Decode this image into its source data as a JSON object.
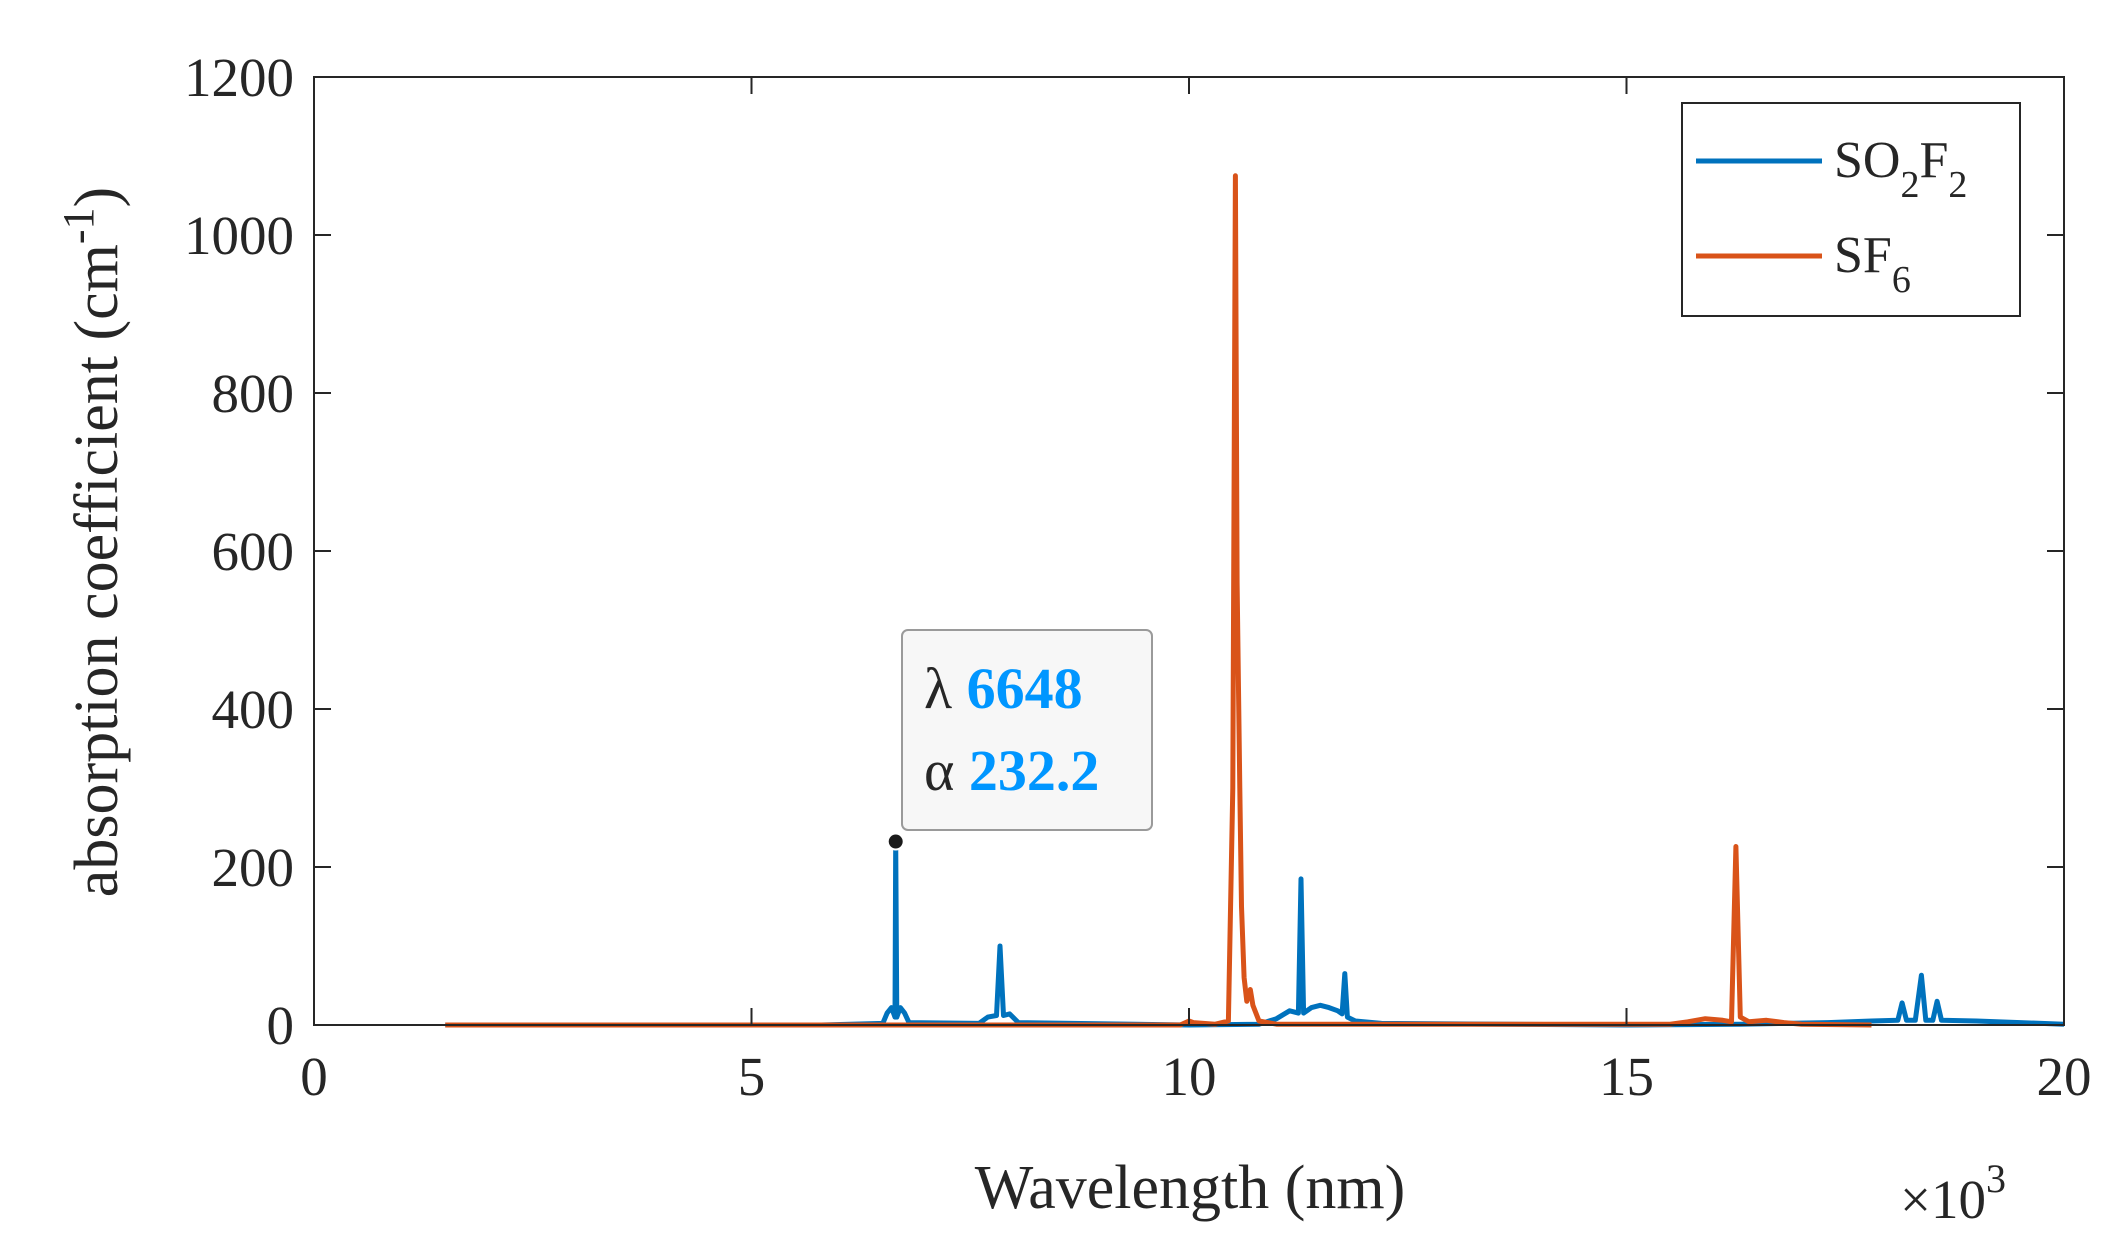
{
  "chart_data": {
    "type": "line",
    "xlabel": "Wavelength (nm)",
    "ylabel_main": "absorption coefficient (cm",
    "ylabel_sup": "-1",
    "ylabel_close": ")",
    "xlim": [
      0,
      20
    ],
    "ylim": [
      0,
      1200
    ],
    "x_multiplier_prefix": "×10",
    "x_multiplier_exp": "3",
    "x_ticks": [
      0,
      5,
      10,
      15,
      20
    ],
    "y_ticks": [
      0,
      200,
      400,
      600,
      800,
      1000,
      1200
    ],
    "grid": false,
    "legend_position": "top-right",
    "series": [
      {
        "name": "SO2F2",
        "legend_parts": [
          [
            "SO",
            ""
          ],
          [
            "2",
            "sub"
          ],
          [
            "F",
            ""
          ],
          [
            "2",
            "sub"
          ]
        ],
        "color": "#0072BD",
        "points": [
          [
            1.5,
            0
          ],
          [
            5.8,
            0
          ],
          [
            6.5,
            2
          ],
          [
            6.55,
            15
          ],
          [
            6.6,
            22
          ],
          [
            6.64,
            10
          ],
          [
            6.648,
            232.2
          ],
          [
            6.66,
            10
          ],
          [
            6.7,
            22
          ],
          [
            6.75,
            15
          ],
          [
            6.8,
            3
          ],
          [
            7.6,
            2
          ],
          [
            7.7,
            10
          ],
          [
            7.8,
            12
          ],
          [
            7.84,
            100
          ],
          [
            7.88,
            12
          ],
          [
            7.95,
            14
          ],
          [
            8.05,
            3
          ],
          [
            10.0,
            0
          ],
          [
            10.8,
            1
          ],
          [
            11.0,
            8
          ],
          [
            11.15,
            18
          ],
          [
            11.25,
            15
          ],
          [
            11.28,
            185
          ],
          [
            11.31,
            15
          ],
          [
            11.4,
            22
          ],
          [
            11.5,
            25
          ],
          [
            11.6,
            22
          ],
          [
            11.7,
            18
          ],
          [
            11.75,
            14
          ],
          [
            11.78,
            65
          ],
          [
            11.81,
            10
          ],
          [
            11.9,
            5
          ],
          [
            12.2,
            2
          ],
          [
            15.0,
            0
          ],
          [
            16.3,
            1
          ],
          [
            16.8,
            2
          ],
          [
            17.3,
            3
          ],
          [
            17.8,
            5
          ],
          [
            18.1,
            6
          ],
          [
            18.15,
            28
          ],
          [
            18.2,
            6
          ],
          [
            18.3,
            6
          ],
          [
            18.37,
            63
          ],
          [
            18.42,
            6
          ],
          [
            18.5,
            6
          ],
          [
            18.55,
            30
          ],
          [
            18.6,
            6
          ],
          [
            19.0,
            5
          ],
          [
            19.5,
            3
          ],
          [
            20,
            1
          ]
        ]
      },
      {
        "name": "SF6",
        "legend_parts": [
          [
            "SF",
            ""
          ],
          [
            "6",
            "sub"
          ]
        ],
        "color": "#D95319",
        "points": [
          [
            1.5,
            0
          ],
          [
            9.9,
            0
          ],
          [
            10.0,
            5
          ],
          [
            10.05,
            3
          ],
          [
            10.3,
            1
          ],
          [
            10.45,
            5
          ],
          [
            10.5,
            300
          ],
          [
            10.53,
            1075
          ],
          [
            10.55,
            560
          ],
          [
            10.58,
            300
          ],
          [
            10.6,
            150
          ],
          [
            10.63,
            60
          ],
          [
            10.66,
            30
          ],
          [
            10.7,
            45
          ],
          [
            10.73,
            25
          ],
          [
            10.8,
            5
          ],
          [
            11.0,
            1
          ],
          [
            15.5,
            1
          ],
          [
            15.7,
            4
          ],
          [
            15.9,
            8
          ],
          [
            16.1,
            6
          ],
          [
            16.2,
            4
          ],
          [
            16.25,
            226
          ],
          [
            16.3,
            10
          ],
          [
            16.4,
            4
          ],
          [
            16.6,
            6
          ],
          [
            16.8,
            3
          ],
          [
            17.0,
            1
          ],
          [
            17.8,
            0
          ]
        ]
      }
    ],
    "datatip": {
      "x": 6648,
      "y": 232.2,
      "series": "SO2F2",
      "x_label": "λ",
      "y_label": "α",
      "x_text": "6648",
      "y_text": "232.2",
      "value_color": "#0096FF"
    }
  }
}
